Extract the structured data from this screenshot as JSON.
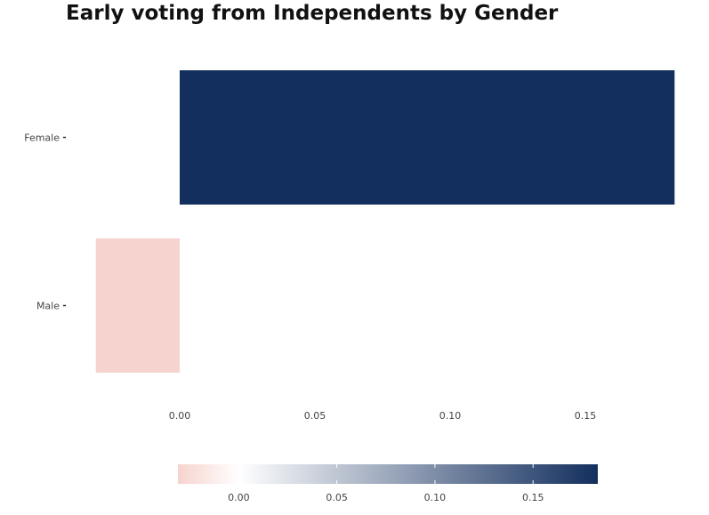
{
  "chart_data": {
    "type": "bar",
    "orientation": "horizontal",
    "title": "Early voting from Independents by Gender",
    "xlabel": "",
    "ylabel": "",
    "categories": [
      "Female",
      "Male"
    ],
    "values": [
      0.183,
      -0.031
    ],
    "xlim": [
      -0.031,
      0.183
    ],
    "x_ticks": [
      "0.00",
      "0.05",
      "0.10",
      "0.15"
    ],
    "x_tick_values": [
      0.0,
      0.05,
      0.1,
      0.15
    ],
    "grid": false,
    "legend": {
      "type": "colorbar",
      "position": "bottom",
      "ticks": [
        "0.00",
        "0.05",
        "0.10",
        "0.15"
      ],
      "tick_values": [
        0.0,
        0.05,
        0.1,
        0.15
      ],
      "colors": {
        "low": "#f6d3ce",
        "mid": "#ffffff",
        "high": "#132f5e"
      }
    }
  }
}
